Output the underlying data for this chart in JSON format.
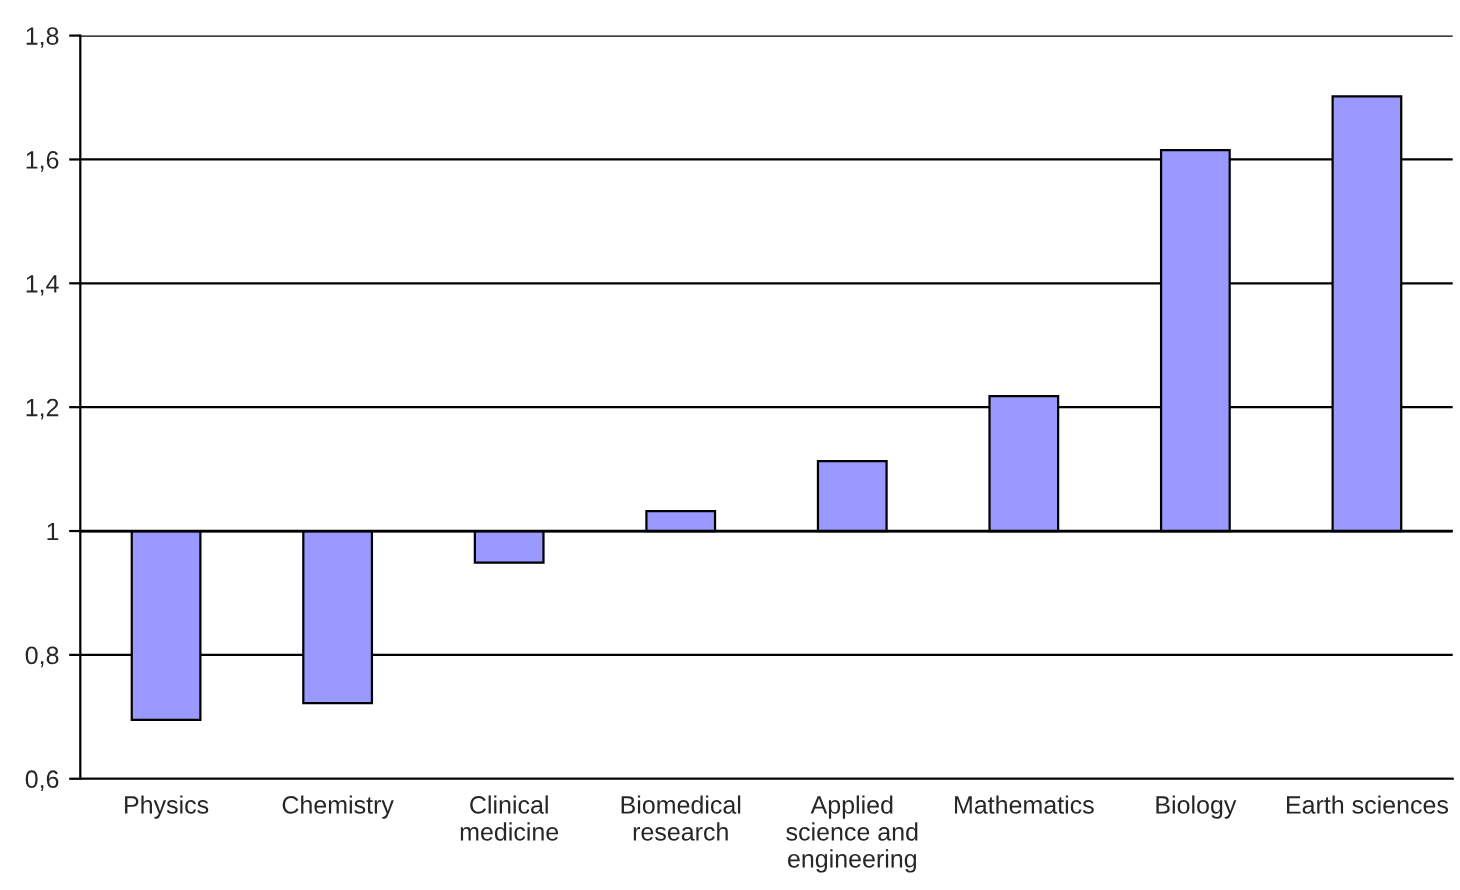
{
  "chart_data": {
    "type": "bar",
    "categories": [
      "Physics",
      "Chemistry",
      "Clinical\nmedicine",
      "Biomedical\nresearch",
      "Applied\nscience and\nengineering",
      "Mathematics",
      "Biology",
      "Earth sciences"
    ],
    "values": [
      -0.305,
      -0.278,
      -0.051,
      0.032,
      0.113,
      0.218,
      0.615,
      0.702
    ],
    "base": [
      1,
      1,
      1,
      1,
      1,
      1,
      1,
      1
    ],
    "color": "#9999ff",
    "ylim": [
      0.6,
      1.8
    ],
    "yticks": [
      {
        "value": 0.6,
        "label": "0,6"
      },
      {
        "value": 0.8,
        "label": "0,8"
      },
      1,
      {
        "value": 1.2,
        "label": "1,2"
      },
      {
        "value": 1.4,
        "label": "1,4"
      },
      {
        "value": 1.6,
        "label": "1,6"
      },
      {
        "value": 1.8,
        "label": "1,8"
      }
    ],
    "ref_lines": [
      {
        "axis": "y",
        "value": 1
      }
    ],
    "grid": "y"
  }
}
